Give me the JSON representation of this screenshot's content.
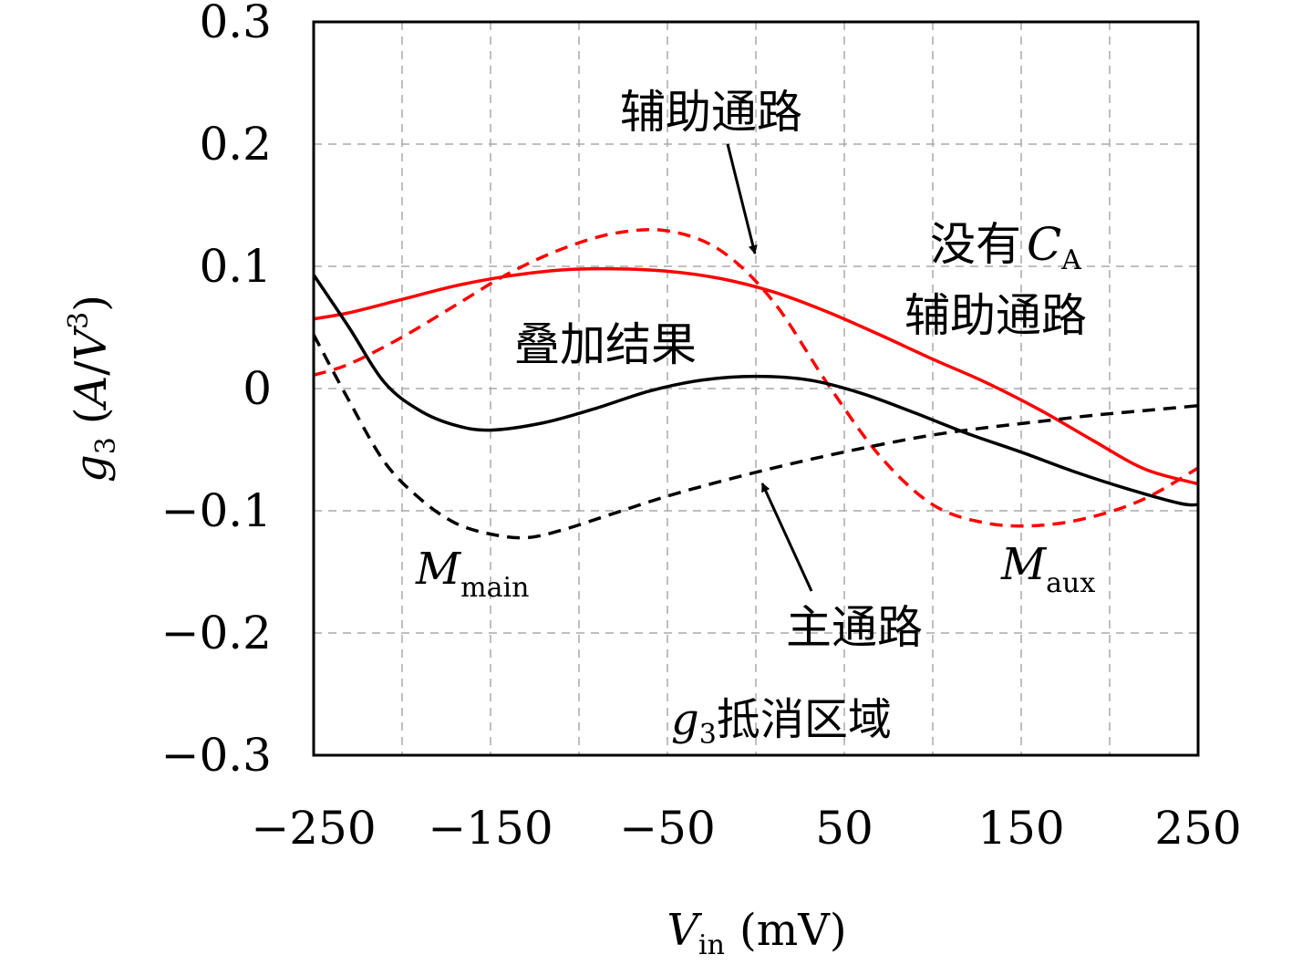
{
  "chart_data": {
    "type": "line",
    "xlabel": {
      "main": "V",
      "sub": "in",
      "unit": "(mV)"
    },
    "ylabel": {
      "main": "g",
      "sub": "3",
      "unit_a": "A",
      "unit_v": "V",
      "unit_exp": "3"
    },
    "xlim": [
      -250,
      250
    ],
    "ylim": [
      -0.3,
      0.3
    ],
    "grid": true,
    "x_ticks": [
      -250,
      -150,
      -50,
      50,
      150,
      250
    ],
    "x_tick_labels": [
      "−250",
      "−150",
      "−50",
      "50",
      "150",
      "250"
    ],
    "x_grid": [
      -200,
      -150,
      -100,
      -50,
      0,
      50,
      100,
      150,
      200
    ],
    "y_ticks": [
      -0.3,
      -0.2,
      -0.1,
      0,
      0.1,
      0.2,
      0.3
    ],
    "y_tick_labels": [
      "−0.3",
      "−0.2",
      "−0.1",
      "0",
      "0.1",
      "0.2",
      "0.3"
    ],
    "series": [
      {
        "color": "#ff0000",
        "dash": false,
        "x": [
          -250,
          -230,
          -200,
          -170,
          -140,
          -110,
          -80,
          -50,
          -20,
          10,
          40,
          70,
          100,
          130,
          160,
          190,
          220,
          250
        ],
        "y": [
          0.057,
          0.062,
          0.073,
          0.084,
          0.092,
          0.097,
          0.098,
          0.096,
          0.09,
          0.079,
          0.063,
          0.044,
          0.024,
          0.005,
          -0.017,
          -0.042,
          -0.066,
          -0.078
        ]
      },
      {
        "color": "#ff0000",
        "dash": true,
        "x": [
          -250,
          -230,
          -200,
          -170,
          -140,
          -110,
          -80,
          -50,
          -20,
          10,
          40,
          70,
          100,
          130,
          160,
          190,
          220,
          250
        ],
        "y": [
          0.011,
          0.02,
          0.042,
          0.068,
          0.094,
          0.114,
          0.127,
          0.129,
          0.113,
          0.071,
          0.005,
          -0.055,
          -0.095,
          -0.11,
          -0.112,
          -0.105,
          -0.09,
          -0.065
        ]
      },
      {
        "color": "#000000",
        "dash": false,
        "x": [
          -250,
          -230,
          -210,
          -190,
          -170,
          -150,
          -120,
          -90,
          -60,
          -30,
          0,
          30,
          60,
          90,
          120,
          150,
          180,
          210,
          240,
          250
        ],
        "y": [
          0.093,
          0.05,
          0.005,
          -0.018,
          -0.03,
          -0.034,
          -0.028,
          -0.016,
          -0.002,
          0.007,
          0.01,
          0.007,
          -0.004,
          -0.02,
          -0.037,
          -0.052,
          -0.068,
          -0.082,
          -0.094,
          -0.095
        ]
      },
      {
        "color": "#000000",
        "dash": true,
        "x": [
          -250,
          -230,
          -210,
          -190,
          -170,
          -150,
          -130,
          -110,
          -80,
          -50,
          -20,
          10,
          40,
          70,
          100,
          130,
          160,
          190,
          220,
          250
        ],
        "y": [
          0.044,
          -0.01,
          -0.06,
          -0.09,
          -0.11,
          -0.119,
          -0.122,
          -0.116,
          -0.102,
          -0.088,
          -0.076,
          -0.065,
          -0.055,
          -0.046,
          -0.038,
          -0.032,
          -0.027,
          -0.022,
          -0.018,
          -0.014
        ]
      }
    ],
    "annotations": {
      "aux_path": "辅助通路",
      "no_ca_prefix": "没有",
      "no_ca_c": "C",
      "no_ca_sub": "A",
      "no_ca_line2": "辅助通路",
      "superposition": "叠加结果",
      "main_path": "主通路",
      "m_main": "M",
      "m_main_sub": "main",
      "m_aux": "M",
      "m_aux_sub": "aux",
      "cancel_g": "g",
      "cancel_sub": "3",
      "cancel_text": "抵消区域"
    }
  }
}
